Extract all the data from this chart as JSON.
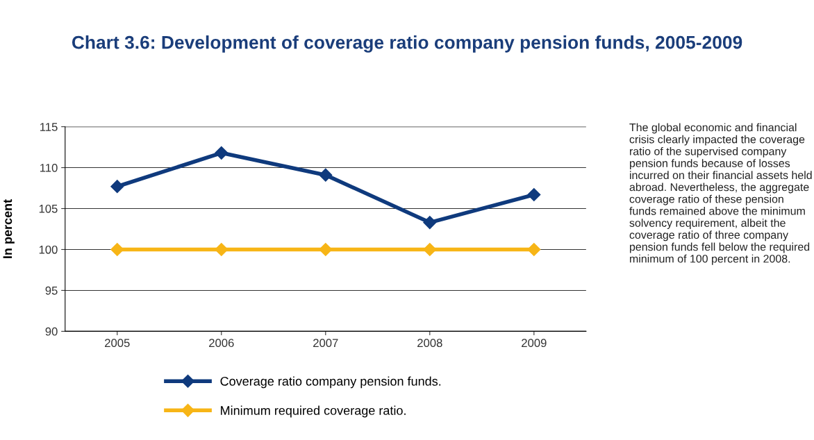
{
  "chart_data": {
    "type": "line",
    "title": "Chart 3.6: Development of coverage ratio company pension funds, 2005-2009",
    "ylabel": "In percent",
    "categories": [
      "2005",
      "2006",
      "2007",
      "2008",
      "2009"
    ],
    "series": [
      {
        "name": "Coverage ratio company pension funds.",
        "color": "#0f3a7d",
        "values": [
          107.7,
          111.8,
          109.1,
          103.3,
          106.7
        ]
      },
      {
        "name": "Minimum required coverage ratio.",
        "color": "#f7b516",
        "values": [
          100,
          100,
          100,
          100,
          100
        ]
      }
    ],
    "ylim": [
      90,
      115
    ],
    "yticks": [
      90,
      95,
      100,
      105,
      110,
      115
    ],
    "grid": "y",
    "legend": "bottom",
    "marker": "diamond",
    "line_style": "solid",
    "annotations": [
      "The global economic and financial crisis clearly impacted the coverage ratio of the supervised company pension funds because of losses incurred on their financial assets held abroad. Nevertheless, the aggregate coverage ratio of these pension funds remained above the minimum solvency requirement, albeit the coverage ratio of three company pension funds fell below the required minimum of 100 percent in 2008."
    ]
  }
}
